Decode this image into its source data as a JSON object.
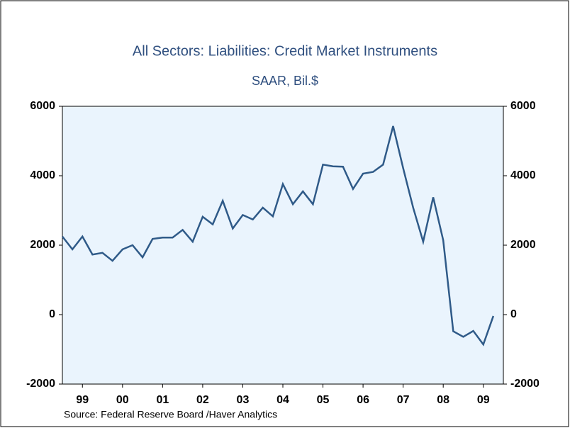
{
  "chart_data": {
    "type": "line",
    "title": "All Sectors: Liabilities: Credit Market Instruments",
    "subtitle": "SAAR, Bil.$",
    "source": "Source:  Federal Reserve Board /Haver Analytics",
    "x": [
      1999.0,
      1999.25,
      1999.5,
      1999.75,
      2000.0,
      2000.25,
      2000.5,
      2000.75,
      2001.0,
      2001.25,
      2001.5,
      2001.75,
      2002.0,
      2002.25,
      2002.5,
      2002.75,
      2003.0,
      2003.25,
      2003.5,
      2003.75,
      2004.0,
      2004.25,
      2004.5,
      2004.75,
      2005.0,
      2005.25,
      2005.5,
      2005.75,
      2006.0,
      2006.25,
      2006.5,
      2006.75,
      2007.0,
      2007.25,
      2007.5,
      2007.75,
      2008.0,
      2008.25,
      2008.5,
      2008.75,
      2009.0,
      2009.25,
      2009.5,
      2009.75
    ],
    "series": [
      {
        "name": "Credit Market Instruments",
        "color": "#2f5a88",
        "values": [
          2250,
          1880,
          2250,
          1730,
          1780,
          1550,
          1880,
          2000,
          1650,
          2180,
          2220,
          2220,
          2440,
          2100,
          2820,
          2600,
          3280,
          2480,
          2870,
          2740,
          3080,
          2830,
          3760,
          3180,
          3550,
          3180,
          4320,
          4270,
          4260,
          3620,
          4060,
          4110,
          4320,
          5430,
          4220,
          3080,
          2100,
          3380,
          2140,
          -480,
          -640,
          -470,
          -860,
          -40
        ]
      }
    ],
    "xlim": [
      1999.0,
      2010.0
    ],
    "xticks": [
      {
        "value": 1999.5,
        "label": "99"
      },
      {
        "value": 2000.5,
        "label": "00"
      },
      {
        "value": 2001.5,
        "label": "01"
      },
      {
        "value": 2002.5,
        "label": "02"
      },
      {
        "value": 2003.5,
        "label": "03"
      },
      {
        "value": 2004.5,
        "label": "04"
      },
      {
        "value": 2005.5,
        "label": "05"
      },
      {
        "value": 2006.5,
        "label": "06"
      },
      {
        "value": 2007.5,
        "label": "07"
      },
      {
        "value": 2008.5,
        "label": "08"
      },
      {
        "value": 2009.5,
        "label": "09"
      }
    ],
    "ylim": [
      -2000,
      6000
    ],
    "yticks": [
      -2000,
      0,
      2000,
      4000,
      6000
    ]
  }
}
